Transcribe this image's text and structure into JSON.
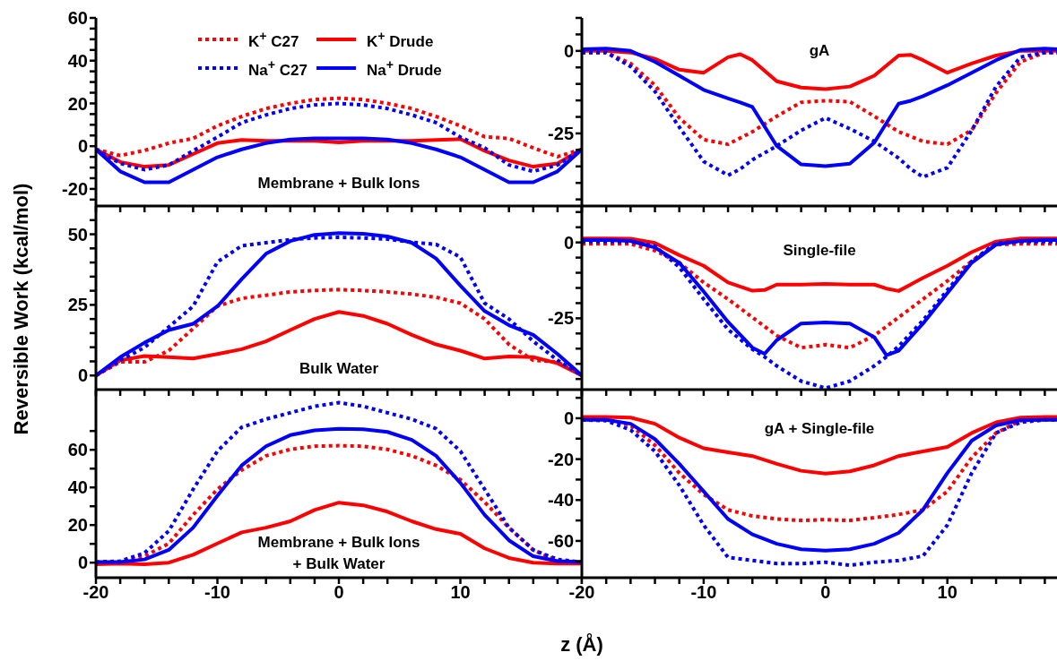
{
  "chart_data": [
    {
      "type": "line",
      "tick_labels": "y",
      "legend": "top",
      "annotations": [
        "Membrane + Bulk Ions"
      ],
      "x": [
        -20,
        -18,
        -16,
        -14,
        -12,
        -10,
        -8,
        -6,
        -4,
        -2,
        0,
        2,
        4,
        6,
        8,
        10,
        12,
        14,
        16,
        18,
        20
      ],
      "xlim": [
        -20,
        20
      ],
      "xticks": [
        -20,
        {
          "value": -18,
          "label": null
        },
        {
          "value": -16,
          "label": null
        },
        {
          "value": -14,
          "label": null
        },
        {
          "value": -12,
          "label": null
        },
        -10,
        {
          "value": -8,
          "label": null
        },
        {
          "value": -6,
          "label": null
        },
        {
          "value": -4,
          "label": null
        },
        {
          "value": -2,
          "label": null
        },
        0,
        {
          "value": 2,
          "label": null
        },
        {
          "value": 4,
          "label": null
        },
        {
          "value": 6,
          "label": null
        },
        {
          "value": 8,
          "label": null
        },
        10,
        {
          "value": 12,
          "label": null
        },
        {
          "value": 14,
          "label": null
        },
        {
          "value": 16,
          "label": null
        },
        {
          "value": 18,
          "label": null
        },
        {
          "value": 20,
          "label": null
        }
      ],
      "ylim": [
        -28,
        60
      ],
      "yticks": [
        {
          "value": -25,
          "label": null
        },
        -20,
        {
          "value": -15,
          "label": null
        },
        {
          "value": -10,
          "label": null
        },
        {
          "value": -5,
          "label": null
        },
        0,
        {
          "value": 5,
          "label": null
        },
        {
          "value": 10,
          "label": null
        },
        {
          "value": 15,
          "label": null
        },
        20,
        {
          "value": 25,
          "label": null
        },
        {
          "value": 30,
          "label": null
        },
        {
          "value": 35,
          "label": null
        },
        40,
        {
          "value": 45,
          "label": null
        },
        {
          "value": 50,
          "label": null
        },
        {
          "value": 55,
          "label": null
        },
        60
      ],
      "series": [
        {
          "name": "K$^{+}$ C27",
          "color": "#ff0000",
          "line_style": "dotted",
          "values": [
            -1.5,
            -4.4,
            -2,
            1.4,
            3.6,
            9.5,
            13.9,
            17.6,
            20,
            21.8,
            22.4,
            21.8,
            20,
            17.6,
            13.9,
            9.5,
            4.4,
            3.6,
            -0.8,
            -4.9,
            -1.5
          ]
        },
        {
          "name": "K$^{+}$ Drude",
          "color": "#ff0000",
          "line_style": "solid",
          "values": [
            -1.5,
            -7.4,
            -9.6,
            -8.8,
            -3.7,
            1.4,
            2.9,
            2.5,
            2.5,
            2.5,
            1.8,
            2.5,
            2.5,
            2.5,
            2.9,
            3.3,
            -2.2,
            -6.7,
            -9.6,
            -8.1,
            -1.5
          ]
        },
        {
          "name": "Na$^{+}$ C27",
          "color": "#0000ff",
          "line_style": "dotted",
          "values": [
            -1.5,
            -8.1,
            -11,
            -8.8,
            -2.2,
            4.2,
            11,
            14.6,
            17.6,
            19.3,
            20,
            19.3,
            17.6,
            14.6,
            11,
            4.2,
            -0.8,
            -8.8,
            -11.8,
            -8.8,
            -1.5
          ]
        },
        {
          "name": "Na$^{+}$ Drude",
          "color": "#0000ff",
          "line_style": "solid",
          "values": [
            -1.5,
            -11.8,
            -16.9,
            -16.9,
            -11,
            -5.2,
            -1.5,
            1.4,
            3.1,
            3.6,
            3.6,
            3.6,
            3.1,
            1.4,
            -1.5,
            -5.2,
            -11,
            -16.9,
            -16.9,
            -11.8,
            -1.5
          ]
        }
      ]
    },
    {
      "type": "line",
      "tick_labels": "y",
      "annotations": [
        "gA"
      ],
      "x": [
        -20,
        -18,
        -16,
        -14,
        -12,
        -10,
        -8,
        -7,
        -6,
        -4,
        -2,
        0,
        2,
        4,
        6,
        7,
        8,
        10,
        12,
        14,
        16,
        18,
        19
      ],
      "xlim": [
        -20,
        19
      ],
      "xticks": [
        -20,
        {
          "value": -18,
          "label": null
        },
        {
          "value": -16,
          "label": null
        },
        {
          "value": -14,
          "label": null
        },
        {
          "value": -12,
          "label": null
        },
        -10,
        {
          "value": -8,
          "label": null
        },
        {
          "value": -6,
          "label": null
        },
        {
          "value": -4,
          "label": null
        },
        {
          "value": -2,
          "label": null
        },
        0,
        {
          "value": 2,
          "label": null
        },
        {
          "value": 4,
          "label": null
        },
        {
          "value": 6,
          "label": null
        },
        {
          "value": 8,
          "label": null
        },
        10,
        {
          "value": 12,
          "label": null
        },
        {
          "value": 14,
          "label": null
        },
        {
          "value": 16,
          "label": null
        },
        {
          "value": 18,
          "label": null
        }
      ],
      "ylim": [
        -47,
        10
      ],
      "yticks": [
        {
          "value": -45,
          "label": null
        },
        {
          "value": -40,
          "label": null
        },
        {
          "value": -35,
          "label": null
        },
        {
          "value": -30,
          "label": null
        },
        -25,
        {
          "value": -20,
          "label": null
        },
        {
          "value": -15,
          "label": null
        },
        {
          "value": -10,
          "label": null
        },
        {
          "value": -5,
          "label": null
        },
        0,
        {
          "value": 5,
          "label": null
        },
        {
          "value": 10,
          "label": null
        }
      ],
      "series": [
        {
          "color": "#ff0000",
          "line_style": "dotted",
          "values": [
            -0.5,
            -0.5,
            -3.8,
            -10.4,
            -20.3,
            -26.9,
            -28.3,
            -26.4,
            -24.5,
            -19.8,
            -15.6,
            -15.1,
            -15.4,
            -19.8,
            -24.5,
            -25.9,
            -27.4,
            -28.3,
            -24,
            -12.7,
            -3.3,
            -0.5,
            -0.5
          ]
        },
        {
          "color": "#ff0000",
          "line_style": "solid",
          "values": [
            0,
            0,
            -0.5,
            -2.4,
            -5.7,
            -6.6,
            -1.9,
            -1,
            -2.8,
            -9.2,
            -11.1,
            -11.6,
            -10.8,
            -7.5,
            -1.4,
            -1.2,
            -2.8,
            -6.6,
            -3.8,
            -1.4,
            0,
            0,
            0
          ]
        },
        {
          "color": "#0000ff",
          "line_style": "dotted",
          "values": [
            -0.5,
            -0.5,
            -4.7,
            -12.3,
            -23.1,
            -33.5,
            -37.7,
            -35.8,
            -33,
            -28.8,
            -24.1,
            -20.3,
            -23.6,
            -27.4,
            -32.5,
            -35.8,
            -38.2,
            -35.4,
            -24.1,
            -10.8,
            -1.9,
            -0.5,
            -0.5
          ]
        },
        {
          "color": "#0000ff",
          "line_style": "solid",
          "values": [
            0.5,
            0.7,
            0,
            -3.3,
            -7.5,
            -11.8,
            -14.4,
            -15.6,
            -17,
            -28.8,
            -34.4,
            -34.9,
            -34.2,
            -27.8,
            -16,
            -15.1,
            -13.7,
            -10.4,
            -6.6,
            -2.8,
            0.3,
            0.7,
            0.5
          ]
        }
      ]
    },
    {
      "type": "line",
      "tick_labels": "y",
      "ylabel": "Reversible Work (kcal/mol)",
      "annotations": [
        "Bulk Water"
      ],
      "x": [
        -20,
        -18,
        -16,
        -14,
        -12,
        -10,
        -8,
        -6,
        -4,
        -2,
        0,
        2,
        4,
        6,
        8,
        10,
        12,
        14,
        16,
        18,
        20
      ],
      "xlim": [
        -20,
        20
      ],
      "xticks": [
        -20,
        {
          "value": -18,
          "label": null
        },
        {
          "value": -16,
          "label": null
        },
        {
          "value": -14,
          "label": null
        },
        {
          "value": -12,
          "label": null
        },
        -10,
        {
          "value": -8,
          "label": null
        },
        {
          "value": -6,
          "label": null
        },
        {
          "value": -4,
          "label": null
        },
        {
          "value": -2,
          "label": null
        },
        0,
        {
          "value": 2,
          "label": null
        },
        {
          "value": 4,
          "label": null
        },
        {
          "value": 6,
          "label": null
        },
        {
          "value": 8,
          "label": null
        },
        10,
        {
          "value": 12,
          "label": null
        },
        {
          "value": 14,
          "label": null
        },
        {
          "value": 16,
          "label": null
        },
        {
          "value": 18,
          "label": null
        },
        {
          "value": 20,
          "label": null
        }
      ],
      "ylim": [
        -5,
        60
      ],
      "yticks": [
        0,
        {
          "value": 5,
          "label": null
        },
        {
          "value": 10,
          "label": null
        },
        {
          "value": 15,
          "label": null
        },
        {
          "value": 20,
          "label": null
        },
        25,
        {
          "value": 30,
          "label": null
        },
        {
          "value": 35,
          "label": null
        },
        {
          "value": 40,
          "label": null
        },
        {
          "value": 45,
          "label": null
        },
        50,
        {
          "value": 55,
          "label": null
        }
      ],
      "series": [
        {
          "color": "#ff0000",
          "line_style": "dotted",
          "values": [
            0,
            4.8,
            4.8,
            8.8,
            16.6,
            24.5,
            27.3,
            28.4,
            29.6,
            30.1,
            30.4,
            30.1,
            29.6,
            28.8,
            27.7,
            25.6,
            20,
            11,
            5.4,
            4.8,
            0
          ]
        },
        {
          "color": "#ff0000",
          "line_style": "solid",
          "values": [
            0,
            5.4,
            6.9,
            6.5,
            6,
            7.6,
            9.3,
            12.1,
            16.1,
            20,
            22.5,
            21.1,
            18.3,
            14.4,
            11,
            8.8,
            6,
            6.7,
            6.5,
            4.3,
            0
          ]
        },
        {
          "color": "#0000ff",
          "line_style": "dotted",
          "values": [
            0,
            5.4,
            9.9,
            17.2,
            24.5,
            40.2,
            45.9,
            47,
            48.1,
            48.7,
            48.9,
            48.7,
            48.3,
            47.2,
            46.4,
            41.9,
            25.6,
            20,
            12.1,
            5.4,
            0
          ]
        },
        {
          "color": "#0000ff",
          "line_style": "solid",
          "values": [
            0,
            6.5,
            11.6,
            16.1,
            18.3,
            24.5,
            34.1,
            43.1,
            47.6,
            49.8,
            50.4,
            50.2,
            49.2,
            47,
            41.4,
            31.8,
            22.8,
            17.8,
            14.4,
            7.6,
            0
          ]
        }
      ]
    },
    {
      "type": "line",
      "tick_labels": "y",
      "annotations": [
        "Single-file"
      ],
      "x": [
        -20,
        -18,
        -16,
        -14,
        -12,
        -10,
        -8,
        -6,
        -5,
        -4,
        -2,
        0,
        2,
        4,
        5,
        6,
        8,
        10,
        12,
        14,
        16,
        18,
        19
      ],
      "xlim": [
        -20,
        19
      ],
      "xticks": [
        -20,
        {
          "value": -18,
          "label": null
        },
        {
          "value": -16,
          "label": null
        },
        {
          "value": -14,
          "label": null
        },
        {
          "value": -12,
          "label": null
        },
        -10,
        {
          "value": -8,
          "label": null
        },
        {
          "value": -6,
          "label": null
        },
        {
          "value": -4,
          "label": null
        },
        {
          "value": -2,
          "label": null
        },
        0,
        {
          "value": 2,
          "label": null
        },
        {
          "value": 4,
          "label": null
        },
        {
          "value": 6,
          "label": null
        },
        {
          "value": 8,
          "label": null
        },
        10,
        {
          "value": 12,
          "label": null
        },
        {
          "value": 14,
          "label": null
        },
        {
          "value": 16,
          "label": null
        },
        {
          "value": 18,
          "label": null
        }
      ],
      "ylim": [
        -48.5,
        12
      ],
      "yticks": [
        {
          "value": -45,
          "label": null
        },
        {
          "value": -40,
          "label": null
        },
        {
          "value": -35,
          "label": null
        },
        {
          "value": -30,
          "label": null
        },
        -25,
        {
          "value": -20,
          "label": null
        },
        {
          "value": -15,
          "label": null
        },
        {
          "value": -10,
          "label": null
        },
        {
          "value": -5,
          "label": null
        },
        0,
        {
          "value": 5,
          "label": null
        },
        {
          "value": 10,
          "label": null
        }
      ],
      "series": [
        {
          "color": "#ff0000",
          "line_style": "dotted",
          "values": [
            -0.5,
            -0.5,
            -0.5,
            -2.7,
            -6.7,
            -13.2,
            -18.7,
            -24.7,
            -27.7,
            -30.7,
            -34.7,
            -33.7,
            -34.7,
            -30.7,
            -27.7,
            -24.7,
            -18.7,
            -12.7,
            -6.2,
            -0.7,
            -0.5,
            -0.5,
            -0.5
          ]
        },
        {
          "color": "#ff0000",
          "line_style": "solid",
          "values": [
            1.3,
            1.3,
            1.2,
            -0.2,
            -4.2,
            -7.7,
            -13.2,
            -15.9,
            -15.7,
            -13.9,
            -13.9,
            -13.7,
            -13.9,
            -13.9,
            -15.2,
            -16,
            -11.7,
            -7.7,
            -3.2,
            0.3,
            1.3,
            1.3,
            1.3
          ]
        },
        {
          "color": "#0000ff",
          "line_style": "dotted",
          "values": [
            0.3,
            0.3,
            0.3,
            -1.2,
            -8.2,
            -18.7,
            -28.7,
            -35.2,
            -37.7,
            -40.7,
            -45.7,
            -48,
            -45.7,
            -40.7,
            -37.7,
            -34.2,
            -25.7,
            -15.7,
            -6.2,
            -0.2,
            0.3,
            0.3,
            0.3
          ]
        },
        {
          "color": "#0000ff",
          "line_style": "solid",
          "values": [
            0.8,
            0.8,
            0.5,
            -1.7,
            -6.7,
            -16.2,
            -26.2,
            -34.7,
            -36.7,
            -32.2,
            -26.7,
            -26.4,
            -26.7,
            -31.2,
            -37.2,
            -35.7,
            -26.7,
            -16.7,
            -6.7,
            -0.7,
            0.5,
            0.8,
            0.8
          ]
        }
      ]
    },
    {
      "type": "line",
      "xlabel": "z (Å)",
      "annotations": [
        "Membrane + Bulk Ions\n+ Bulk Water"
      ],
      "x": [
        -20,
        -18,
        -16,
        -14,
        -12,
        -10,
        -8,
        -6,
        -4,
        -2,
        0,
        2,
        4,
        6,
        8,
        10,
        12,
        14,
        16,
        18,
        20
      ],
      "xlim": [
        -20,
        20
      ],
      "xticks": [
        -20,
        {
          "value": -18,
          "label": null
        },
        {
          "value": -16,
          "label": null
        },
        {
          "value": -14,
          "label": null
        },
        {
          "value": -12,
          "label": null
        },
        -10,
        {
          "value": -8,
          "label": null
        },
        {
          "value": -6,
          "label": null
        },
        {
          "value": -4,
          "label": null
        },
        {
          "value": -2,
          "label": null
        },
        0,
        {
          "value": 2,
          "label": null
        },
        {
          "value": 4,
          "label": null
        },
        {
          "value": 6,
          "label": null
        },
        {
          "value": 8,
          "label": null
        },
        10,
        {
          "value": 12,
          "label": null
        },
        {
          "value": 14,
          "label": null
        },
        {
          "value": 16,
          "label": null
        },
        {
          "value": 18,
          "label": null
        },
        {
          "value": 20,
          "label": null
        }
      ],
      "ylim": [
        -8,
        92
      ],
      "yticks": [
        0,
        {
          "value": 10,
          "label": null
        },
        20,
        {
          "value": 30,
          "label": null
        },
        40,
        {
          "value": 50,
          "label": null
        },
        60,
        {
          "value": 70,
          "label": null
        }
      ],
      "series": [
        {
          "color": "#ff0000",
          "line_style": "dotted",
          "values": [
            0,
            0.3,
            3.4,
            10.2,
            25.4,
            39,
            49.2,
            56.8,
            60.2,
            61.9,
            62.2,
            61.9,
            60.2,
            56.8,
            51.7,
            44.1,
            32.2,
            18.6,
            6.8,
            0.8,
            0
          ]
        },
        {
          "color": "#ff0000",
          "line_style": "solid",
          "values": [
            -0.8,
            -0.5,
            -0.8,
            0,
            4.2,
            10.2,
            16.1,
            18.6,
            22,
            28,
            31.9,
            30.5,
            27.1,
            22,
            17.8,
            15.3,
            7.6,
            2.5,
            0,
            -0.5,
            -0.5
          ]
        },
        {
          "color": "#0000ff",
          "line_style": "dotted",
          "values": [
            0.3,
            0.8,
            5.1,
            16.9,
            39,
            59.3,
            72,
            76.3,
            79.7,
            83.1,
            85.1,
            83.1,
            79.7,
            76.3,
            71.2,
            59.3,
            39,
            18.6,
            6.8,
            1.7,
            0.3
          ]
        },
        {
          "color": "#0000ff",
          "line_style": "solid",
          "values": [
            0.3,
            0.3,
            1.7,
            6.8,
            18.6,
            35.6,
            51.7,
            61.9,
            67.8,
            70.3,
            71.2,
            70.9,
            69.5,
            65.3,
            56.8,
            42.4,
            25.4,
            11.9,
            3.4,
            0.8,
            0.3
          ]
        }
      ]
    },
    {
      "type": "line",
      "annotations": [
        "gA + Single-file"
      ],
      "x": [
        -20,
        -18,
        -16,
        -14,
        -12,
        -10,
        -8,
        -6,
        -4,
        -2,
        0,
        2,
        4,
        6,
        8,
        10,
        12,
        14,
        16,
        18,
        19
      ],
      "xlim": [
        -20,
        19
      ],
      "xticks": [
        -20,
        {
          "value": -18,
          "label": null
        },
        {
          "value": -16,
          "label": null
        },
        {
          "value": -14,
          "label": null
        },
        {
          "value": -12,
          "label": null
        },
        -10,
        {
          "value": -8,
          "label": null
        },
        {
          "value": -6,
          "label": null
        },
        {
          "value": -4,
          "label": null
        },
        {
          "value": -2,
          "label": null
        },
        0,
        {
          "value": 2,
          "label": null
        },
        {
          "value": 4,
          "label": null
        },
        {
          "value": 6,
          "label": null
        },
        {
          "value": 8,
          "label": null
        },
        10,
        {
          "value": 12,
          "label": null
        },
        {
          "value": 14,
          "label": null
        },
        {
          "value": 16,
          "label": null
        },
        {
          "value": 18,
          "label": null
        }
      ],
      "ylim": [
        -78,
        14
      ],
      "yticks": [
        {
          "value": -70,
          "label": null
        },
        -60,
        {
          "value": -50,
          "label": null
        },
        -40,
        {
          "value": -30,
          "label": null
        },
        -20,
        {
          "value": -10,
          "label": null
        },
        0,
        {
          "value": 10,
          "label": null
        }
      ],
      "series": [
        {
          "color": "#ff0000",
          "line_style": "dotted",
          "values": [
            -0.5,
            -0.5,
            -3.5,
            -13.2,
            -26.8,
            -37.3,
            -44.8,
            -47.8,
            -49.3,
            -50,
            -49.6,
            -50,
            -48.6,
            -47.1,
            -44.8,
            -35.8,
            -19.2,
            -7.2,
            -1.2,
            -0.5,
            -0.5
          ]
        },
        {
          "color": "#ff0000",
          "line_style": "solid",
          "values": [
            0.6,
            0.6,
            0.3,
            -2.7,
            -9.5,
            -14.7,
            -16.7,
            -18.5,
            -22.3,
            -25.7,
            -27.1,
            -26,
            -23,
            -18.5,
            -16.2,
            -14,
            -7.2,
            -2,
            0.3,
            0.6,
            0.6
          ]
        },
        {
          "color": "#0000ff",
          "line_style": "dotted",
          "values": [
            -0.8,
            -1.2,
            -5.7,
            -16.2,
            -32.8,
            -52.3,
            -68.1,
            -69.6,
            -71.1,
            -71.1,
            -70.4,
            -71.9,
            -70.4,
            -69.6,
            -67.4,
            -52.3,
            -26.8,
            -7.2,
            -2,
            -0.8,
            -0.8
          ]
        },
        {
          "color": "#0000ff",
          "line_style": "solid",
          "values": [
            -0.8,
            -0.8,
            -2.7,
            -10.2,
            -22.3,
            -35.8,
            -49.3,
            -56.8,
            -61.4,
            -64.1,
            -64.7,
            -64.1,
            -61.4,
            -56.1,
            -44.8,
            -26.8,
            -11,
            -3.5,
            -0.9,
            -0.8,
            -0.8
          ]
        }
      ]
    }
  ]
}
